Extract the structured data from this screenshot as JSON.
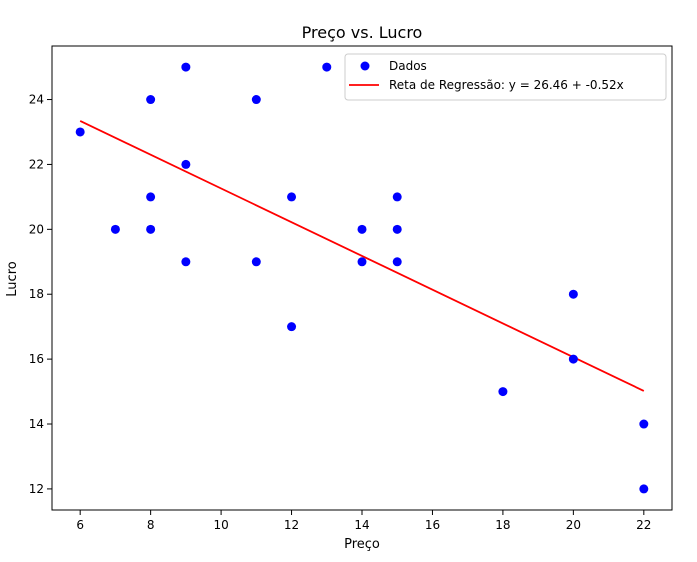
{
  "chart_data": {
    "type": "scatter",
    "title": "Preço vs. Lucro",
    "xlabel": "Preço",
    "ylabel": "Lucro",
    "xlim": [
      5.2,
      22.8
    ],
    "ylim": [
      11.35,
      25.65
    ],
    "xticks": [
      6,
      8,
      10,
      12,
      14,
      16,
      18,
      20,
      22
    ],
    "yticks": [
      12,
      14,
      16,
      18,
      20,
      22,
      24
    ],
    "grid": false,
    "legend_position": "top-right",
    "series": [
      {
        "name": "Dados",
        "kind": "scatter",
        "color": "#0000ff",
        "points": [
          [
            6,
            23
          ],
          [
            7,
            20
          ],
          [
            8,
            24
          ],
          [
            8,
            21
          ],
          [
            8,
            20
          ],
          [
            9,
            25
          ],
          [
            9,
            22
          ],
          [
            9,
            19
          ],
          [
            11,
            24
          ],
          [
            11,
            19
          ],
          [
            12,
            21
          ],
          [
            12,
            17
          ],
          [
            13,
            25
          ],
          [
            14,
            20
          ],
          [
            14,
            19
          ],
          [
            15,
            21
          ],
          [
            15,
            20
          ],
          [
            15,
            19
          ],
          [
            18,
            15
          ],
          [
            20,
            18
          ],
          [
            20,
            16
          ],
          [
            22,
            14
          ],
          [
            22,
            12
          ]
        ]
      },
      {
        "name": "Reta de Regressão: y = 26.46 + -0.52x",
        "kind": "line",
        "color": "#ff0000",
        "intercept": 26.46,
        "slope": -0.52,
        "x_range": [
          6,
          22
        ]
      }
    ]
  }
}
